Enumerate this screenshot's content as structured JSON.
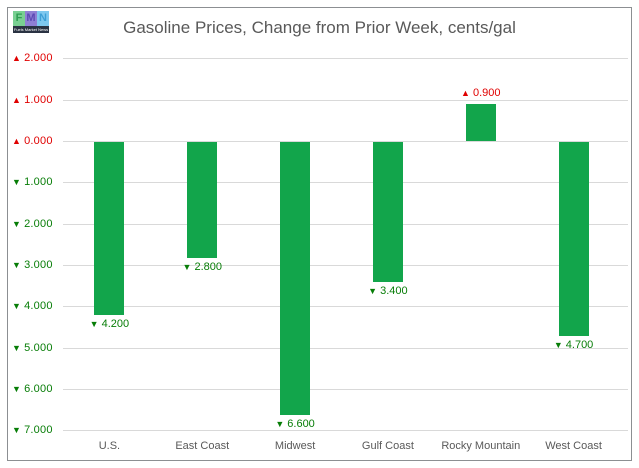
{
  "title": "Gasoline Prices, Change from Prior Week, cents/gal",
  "logo": {
    "letters": [
      "F",
      "M",
      "N"
    ],
    "caption": "Fuels Market News"
  },
  "colors": {
    "bar": "#12a54b",
    "up": "#e00000",
    "down": "#077d07",
    "grid": "#d9d9d9",
    "axis_text": "#595959",
    "frame_border": "#8c8f92"
  },
  "chart_data": {
    "type": "bar",
    "title": "Gasoline Prices, Change from Prior Week, cents/gal",
    "categories": [
      "U.S.",
      "East Coast",
      "Midwest",
      "Gulf Coast",
      "Rocky Mountain",
      "West Coast"
    ],
    "values": [
      -4.2,
      -2.8,
      -6.6,
      -3.4,
      0.9,
      -4.7
    ],
    "data_labels": [
      "4.200",
      "2.800",
      "6.600",
      "3.400",
      "0.900",
      "4.700"
    ],
    "yticks": [
      {
        "value": 2,
        "label": "2.000",
        "direction": "up"
      },
      {
        "value": 1,
        "label": "1.000",
        "direction": "up"
      },
      {
        "value": 0,
        "label": "0.000",
        "direction": "up"
      },
      {
        "value": -1,
        "label": "1.000",
        "direction": "down"
      },
      {
        "value": -2,
        "label": "2.000",
        "direction": "down"
      },
      {
        "value": -3,
        "label": "3.000",
        "direction": "down"
      },
      {
        "value": -4,
        "label": "4.000",
        "direction": "down"
      },
      {
        "value": -5,
        "label": "5.000",
        "direction": "down"
      },
      {
        "value": -6,
        "label": "6.000",
        "direction": "down"
      },
      {
        "value": -7,
        "label": "7.000",
        "direction": "down"
      }
    ],
    "ylim": [
      -7,
      2
    ],
    "xlabel": "",
    "ylabel": "",
    "grid": true,
    "legend": false,
    "triangle_up": "▲",
    "triangle_down": "▼"
  }
}
